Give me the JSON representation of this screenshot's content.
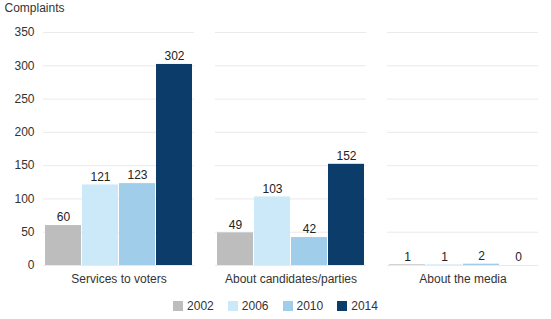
{
  "chart_data": {
    "type": "bar",
    "ylabel": "Complaints",
    "categories": [
      "Services to voters",
      "About candidates/parties",
      "About the media"
    ],
    "series": [
      {
        "name": "2002",
        "color": "#bdbdbd",
        "values": [
          60,
          49,
          1
        ]
      },
      {
        "name": "2006",
        "color": "#cce9f9",
        "values": [
          121,
          103,
          1
        ]
      },
      {
        "name": "2010",
        "color": "#9fcdea",
        "values": [
          123,
          42,
          2
        ]
      },
      {
        "name": "2014",
        "color": "#0b3c6a",
        "values": [
          302,
          152,
          0
        ]
      }
    ],
    "ylim": [
      0,
      350
    ],
    "yticks": [
      0,
      50,
      100,
      150,
      200,
      250,
      300,
      350
    ],
    "grid": true,
    "data_labels": true,
    "legend": "bottom"
  }
}
